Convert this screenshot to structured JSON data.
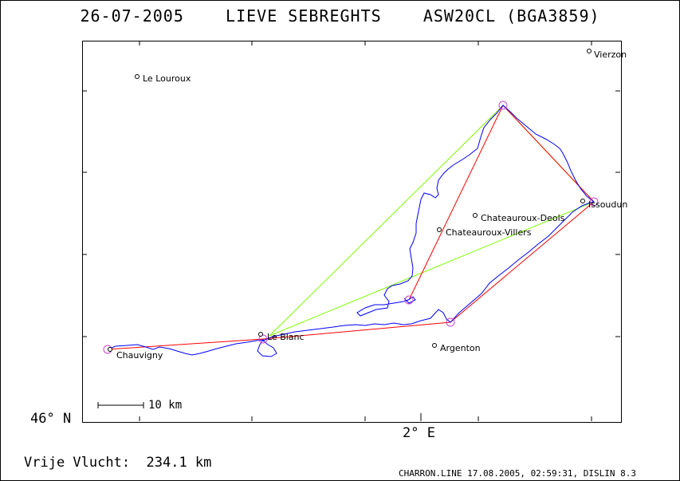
{
  "title": "26-07-2005    LIEVE SEBREGHTS    ASW20CL (BGA3859)",
  "axes": {
    "y_label": "46° N",
    "x_label": "2° E"
  },
  "scale_bar": {
    "label": "10 km"
  },
  "places": [
    {
      "name": "Le Louroux"
    },
    {
      "name": "Vierzon"
    },
    {
      "name": "Issoudun"
    },
    {
      "name": "Chateauroux-Deols"
    },
    {
      "name": "Chateauroux-Villers"
    },
    {
      "name": "Le Blanc"
    },
    {
      "name": "Argenton"
    },
    {
      "name": "Chauvigny"
    }
  ],
  "footer": {
    "distance": "Vrije Vlucht:  234.1 km",
    "credit": "CHARRON.LINE 17.08.2005, 02:59:31, DISLIN 8.3"
  },
  "colors": {
    "task_line": "#ff0000",
    "triangle_line": "#80ff00",
    "track": "#0000ff",
    "turnpoint": "#cc44cc"
  }
}
